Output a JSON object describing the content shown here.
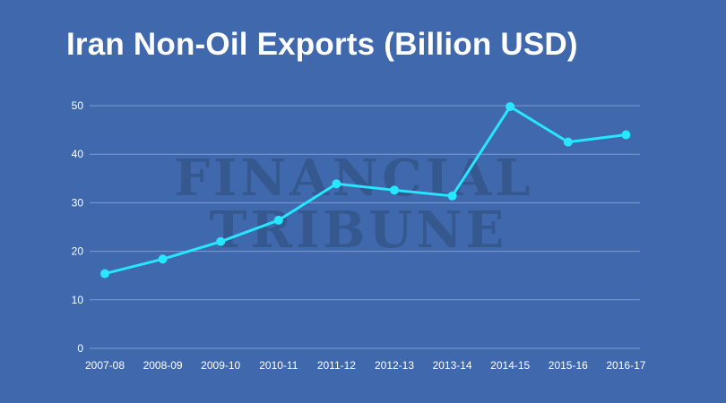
{
  "title": "Iran Non-Oil Exports (Billion USD)",
  "watermark": {
    "line1": "FINANCIAL",
    "line2": "TRIBUNE"
  },
  "colors": {
    "background": "#3f68ad",
    "line": "#27e6ff",
    "grid": "#7e9cd0",
    "text": "#ffffff",
    "watermark": "#35588f"
  },
  "chart_data": {
    "type": "line",
    "title": "Iran Non-Oil Exports (Billion USD)",
    "xlabel": "",
    "ylabel": "",
    "categories": [
      "2007-08",
      "2008-09",
      "2009-10",
      "2010-11",
      "2011-12",
      "2012-13",
      "2013-14",
      "2014-15",
      "2015-16",
      "2016-17"
    ],
    "series": [
      {
        "values": [
          15.4,
          18.4,
          22.0,
          26.4,
          33.9,
          32.6,
          31.4,
          49.8,
          42.5,
          44.0
        ]
      }
    ],
    "ylim": [
      0,
      50
    ],
    "yticks": [
      0,
      10,
      20,
      30,
      40,
      50
    ],
    "grid": true,
    "legend": "none"
  }
}
